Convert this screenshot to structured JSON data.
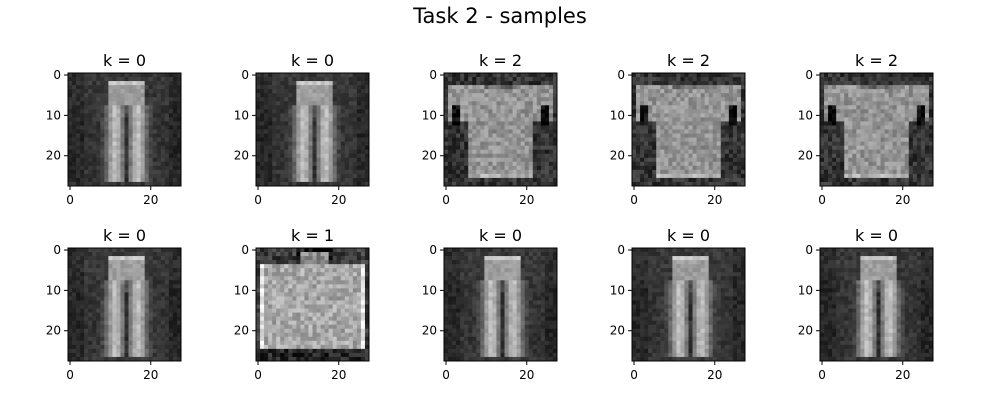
{
  "figure": {
    "title": "Task 2 - samples"
  },
  "chart_data": {
    "type": "heatmap",
    "colormap": "gray",
    "grid": false,
    "layout": {
      "rows": 2,
      "cols": 5
    },
    "image_size": [
      28,
      28
    ],
    "xticks": [
      0,
      20
    ],
    "yticks": [
      0,
      10,
      20
    ],
    "panels": [
      {
        "title": "k = 0",
        "garment": "trousers"
      },
      {
        "title": "k = 0",
        "garment": "trousers"
      },
      {
        "title": "k = 2",
        "garment": "shirt"
      },
      {
        "title": "k = 2",
        "garment": "shirt"
      },
      {
        "title": "k = 2",
        "garment": "shirt"
      },
      {
        "title": "k = 0",
        "garment": "trousers"
      },
      {
        "title": "k = 1",
        "garment": "bag"
      },
      {
        "title": "k = 0",
        "garment": "trousers"
      },
      {
        "title": "k = 0",
        "garment": "trousers"
      },
      {
        "title": "k = 0",
        "garment": "trousers"
      }
    ]
  }
}
